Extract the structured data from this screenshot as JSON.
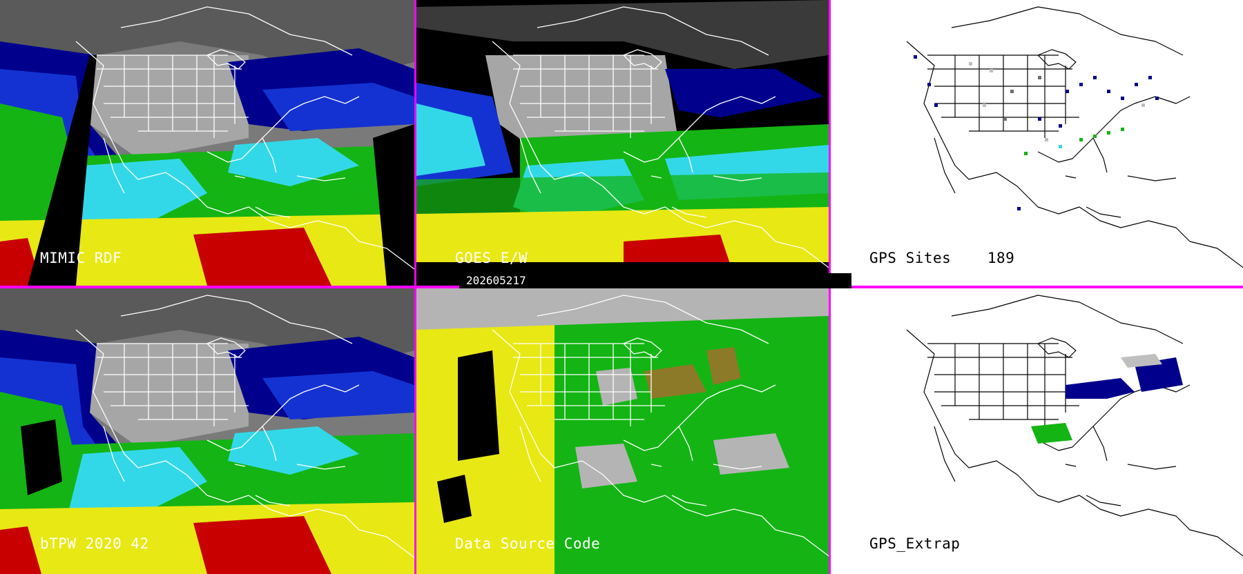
{
  "panels": {
    "top_left": {
      "label": "MIMIC RDF"
    },
    "top_middle": {
      "label": "GOES E/W"
    },
    "top_right": {
      "label": "GPS Sites    189"
    },
    "bottom_left": {
      "label": "bTPW 2020 42"
    },
    "bottom_middle": {
      "label": "Data Source Code"
    },
    "bottom_right": {
      "label": "GPS_Extrap"
    }
  },
  "timestamp": "202605217",
  "colors": {
    "divider": "#ff00ff",
    "tpw_scale": [
      "#000000",
      "#6e6e6e",
      "#bfbfbf",
      "#00008c",
      "#1432d2",
      "#33d8e8",
      "#14b414",
      "#5ad85a",
      "#e8e814",
      "#e8a000",
      "#c80000"
    ],
    "source_code": [
      "#b4b4b4",
      "#e8e814",
      "#14b414",
      "#8c7a28",
      "#000000"
    ]
  },
  "icons": {
    "map_outline": "north-america-outline"
  }
}
